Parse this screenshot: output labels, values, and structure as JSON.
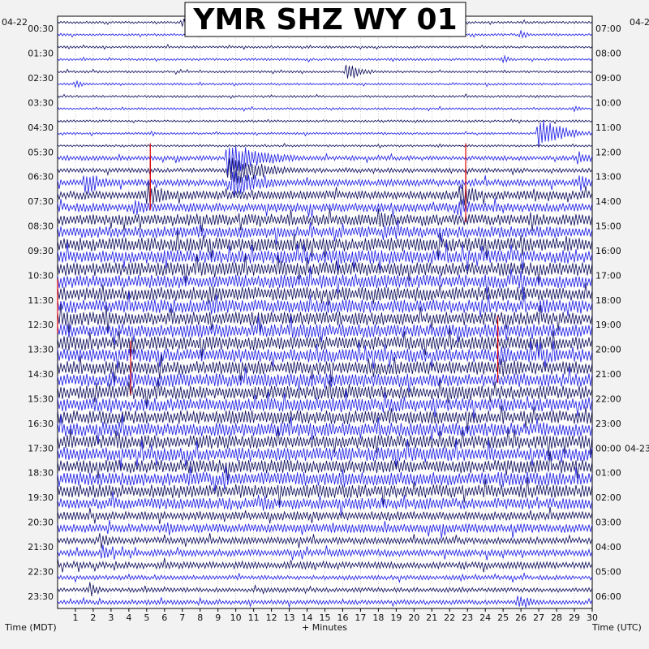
{
  "title": "YMR SHZ WY 01",
  "chart_data": {
    "type": "helicorder",
    "title": "YMR SHZ WY 01",
    "xlabel": "+ Minutes",
    "left_axis_label": "Time (MDT)",
    "right_axis_label": "Time (UTC)",
    "date_left": "04-22",
    "date_right_top": "04-2",
    "date_right_mid": "04-23",
    "x_range": [
      0,
      30
    ],
    "x_ticks": [
      "1",
      "2",
      "3",
      "4",
      "5",
      "6",
      "7",
      "8",
      "9",
      "10",
      "11",
      "12",
      "13",
      "14",
      "15",
      "16",
      "17",
      "18",
      "19",
      "20",
      "21",
      "22",
      "23",
      "24",
      "25",
      "26",
      "27",
      "28",
      "29",
      "30"
    ],
    "rows": 48,
    "left_time_labels": [
      "00:30",
      "01:30",
      "02:30",
      "03:30",
      "04:30",
      "05:30",
      "06:30",
      "07:30",
      "08:30",
      "09:30",
      "10:30",
      "11:30",
      "12:30",
      "13:30",
      "14:30",
      "15:30",
      "16:30",
      "17:30",
      "18:30",
      "19:30",
      "20:30",
      "21:30",
      "22:30",
      "23:30"
    ],
    "right_time_labels": [
      "07:00",
      "08:00",
      "09:00",
      "10:00",
      "11:00",
      "12:00",
      "13:00",
      "14:00",
      "15:00",
      "16:00",
      "17:00",
      "18:00",
      "19:00",
      "20:00",
      "21:00",
      "22:00",
      "23:00",
      "00:00",
      "01:00",
      "02:00",
      "03:00",
      "04:00",
      "05:00",
      "06:00"
    ],
    "trace_colors": [
      "#0a0a5a",
      "#1a1ae6"
    ],
    "clip_color": "#dd0000",
    "grid": "dotted minute lines",
    "row_amplitude": [
      1,
      1,
      1,
      1,
      1,
      1,
      1,
      1,
      1,
      1,
      1,
      2,
      2,
      3,
      4,
      4,
      5,
      5,
      6,
      6,
      6,
      6,
      6,
      6,
      6,
      6,
      6,
      6,
      6,
      6,
      6,
      6,
      6,
      6,
      6,
      6,
      6,
      6,
      6,
      5,
      4,
      4,
      3,
      3,
      3,
      2,
      2,
      2
    ],
    "events": [
      {
        "row": 0,
        "minute": 7.0,
        "amp": 10,
        "dur": 0.6
      },
      {
        "row": 1,
        "minute": 26.0,
        "amp": 8,
        "dur": 0.4
      },
      {
        "row": 3,
        "minute": 25.0,
        "amp": 6,
        "dur": 0.4
      },
      {
        "row": 4,
        "minute": 16.2,
        "amp": 14,
        "dur": 0.8
      },
      {
        "row": 5,
        "minute": 1.0,
        "amp": 6,
        "dur": 0.4
      },
      {
        "row": 7,
        "minute": 29.0,
        "amp": 5,
        "dur": 0.4
      },
      {
        "row": 9,
        "minute": 27.0,
        "amp": 22,
        "dur": 1.4
      },
      {
        "row": 11,
        "minute": 29.2,
        "amp": 10,
        "dur": 0.8
      },
      {
        "row": 11,
        "minute": 9.5,
        "amp": 24,
        "dur": 2.0
      },
      {
        "row": 12,
        "minute": 9.6,
        "amp": 22,
        "dur": 2.0
      },
      {
        "row": 13,
        "minute": 1.5,
        "amp": 16,
        "dur": 1.2
      },
      {
        "row": 13,
        "minute": 9.8,
        "amp": 20,
        "dur": 1.8
      },
      {
        "row": 13,
        "minute": 29.3,
        "amp": 14,
        "dur": 0.6
      },
      {
        "row": 14,
        "minute": 5.0,
        "amp": 20,
        "dur": 1.0
      },
      {
        "row": 14,
        "minute": 22.6,
        "amp": 18,
        "dur": 1.0
      },
      {
        "row": 15,
        "minute": 4.3,
        "amp": 14,
        "dur": 1.0
      },
      {
        "row": 15,
        "minute": 22.5,
        "amp": 14,
        "dur": 1.0
      },
      {
        "row": 16,
        "minute": 18.0,
        "amp": 14,
        "dur": 1.2
      },
      {
        "row": 16,
        "minute": 26.5,
        "amp": 12,
        "dur": 0.8
      },
      {
        "row": 17,
        "minute": 18.3,
        "amp": 12,
        "dur": 1.0
      },
      {
        "row": 18,
        "minute": 28.5,
        "amp": 12,
        "dur": 0.8
      },
      {
        "row": 20,
        "minute": 12.5,
        "amp": 14,
        "dur": 0.6
      },
      {
        "row": 21,
        "minute": 12.5,
        "amp": 12,
        "dur": 0.6
      },
      {
        "row": 22,
        "minute": 8.5,
        "amp": 18,
        "dur": 1.0
      },
      {
        "row": 23,
        "minute": 8.6,
        "amp": 16,
        "dur": 1.0
      },
      {
        "row": 24,
        "minute": 0.3,
        "amp": 12,
        "dur": 0.6
      },
      {
        "row": 26,
        "minute": 0.6,
        "amp": 12,
        "dur": 1.2
      },
      {
        "row": 27,
        "minute": 24.8,
        "amp": 14,
        "dur": 1.5
      },
      {
        "row": 28,
        "minute": 24.9,
        "amp": 12,
        "dur": 1.5
      },
      {
        "row": 29,
        "minute": 4.2,
        "amp": 12,
        "dur": 0.6
      },
      {
        "row": 33,
        "minute": 2.5,
        "amp": 12,
        "dur": 0.8
      },
      {
        "row": 37,
        "minute": 27.5,
        "amp": 12,
        "dur": 0.8
      },
      {
        "row": 42,
        "minute": 2.4,
        "amp": 14,
        "dur": 0.6
      },
      {
        "row": 43,
        "minute": 2.5,
        "amp": 12,
        "dur": 0.6
      },
      {
        "row": 46,
        "minute": 1.8,
        "amp": 10,
        "dur": 0.6
      },
      {
        "row": 47,
        "minute": 25.8,
        "amp": 12,
        "dur": 0.8
      }
    ],
    "clipped_spikes": [
      {
        "row": 12,
        "minute": 5.2
      },
      {
        "row": 13,
        "minute": 5.2
      },
      {
        "row": 12,
        "minute": 22.9
      },
      {
        "row": 14,
        "minute": 22.9
      },
      {
        "row": 23,
        "minute": 0.0
      },
      {
        "row": 26,
        "minute": 24.7
      },
      {
        "row": 27,
        "minute": 24.7
      },
      {
        "row": 28,
        "minute": 4.1
      }
    ]
  }
}
